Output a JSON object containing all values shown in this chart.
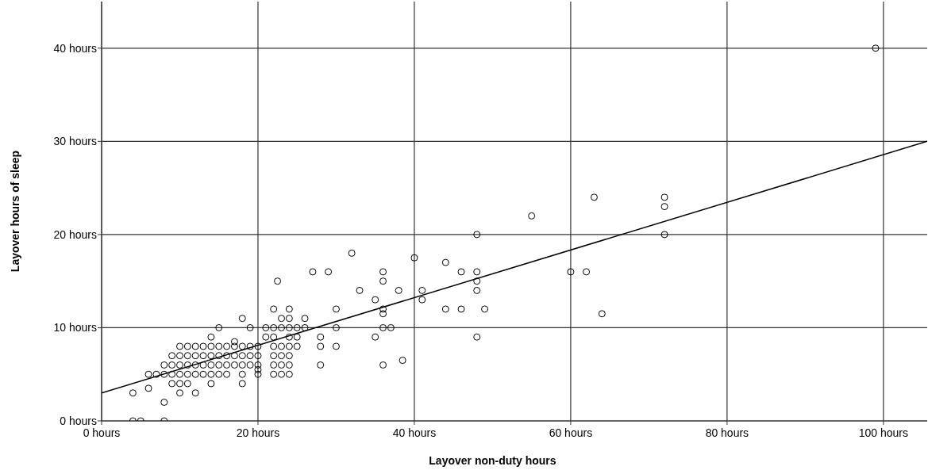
{
  "chart_data": {
    "type": "scatter",
    "xlabel": "Layover non-duty hours",
    "ylabel": "Layover hours of sleep",
    "xlim": [
      0,
      105.6
    ],
    "ylim": [
      0,
      45
    ],
    "xticks": [
      {
        "value": 0,
        "label": "0 hours"
      },
      {
        "value": 20,
        "label": "20 hours"
      },
      {
        "value": 40,
        "label": "40 hours"
      },
      {
        "value": 60,
        "label": "60 hours"
      },
      {
        "value": 80,
        "label": "80 hours"
      },
      {
        "value": 100,
        "label": "100 hours"
      }
    ],
    "yticks": [
      {
        "value": 0,
        "label": "0 hours"
      },
      {
        "value": 10,
        "label": "10 hours"
      },
      {
        "value": 20,
        "label": "20 hours"
      },
      {
        "value": 30,
        "label": "30 hours"
      },
      {
        "value": 40,
        "label": "40 hours"
      }
    ],
    "grid": true,
    "marker": "circle",
    "series": [
      {
        "color": "#000000",
        "x": [
          99,
          72,
          72,
          72,
          63,
          55,
          60,
          62,
          64,
          48,
          48,
          48,
          48,
          48,
          49,
          46,
          46,
          44,
          44,
          40,
          41,
          41,
          38,
          38.5,
          36,
          36,
          36,
          36,
          36,
          36,
          37,
          35,
          35,
          33,
          32,
          30,
          30,
          30,
          29,
          28,
          28,
          28,
          27,
          26,
          26,
          25,
          25,
          25,
          24,
          24,
          24,
          24,
          24,
          24,
          24,
          24,
          23,
          23,
          23,
          23,
          23,
          23,
          22.5,
          22,
          22,
          22,
          22,
          22,
          22,
          22,
          21,
          21,
          20,
          20,
          20,
          20,
          20,
          19,
          19,
          19,
          19,
          18,
          18,
          18,
          18,
          18,
          18,
          17,
          17,
          17,
          17,
          16,
          16,
          16,
          16,
          15,
          15,
          15,
          15,
          15,
          14,
          14,
          14,
          14,
          14,
          14,
          13,
          13,
          13,
          13,
          12,
          12,
          12,
          12,
          12,
          11,
          11,
          11,
          11,
          11,
          10,
          10,
          10,
          10,
          10,
          10,
          9,
          9,
          9,
          9,
          8,
          8,
          8,
          8,
          7,
          6,
          6,
          4,
          4,
          5
        ],
        "values": [
          40,
          24,
          23,
          20,
          24,
          22,
          16,
          16,
          11.5,
          20,
          16,
          15,
          14,
          9,
          12,
          16,
          12,
          17,
          12,
          17.5,
          14,
          13,
          14,
          6.5,
          16,
          15,
          12,
          11.5,
          10,
          6,
          10,
          13,
          9,
          14,
          18,
          12,
          10,
          8,
          16,
          9,
          8,
          6,
          16,
          11,
          10,
          10,
          9,
          8,
          12,
          11,
          10,
          9,
          8,
          7,
          6,
          5,
          11,
          10,
          8,
          7,
          6,
          5,
          15,
          12,
          10,
          9,
          8,
          7,
          6,
          5,
          10,
          9,
          8,
          7,
          6,
          5.5,
          5,
          10,
          8,
          7,
          6,
          11,
          8,
          7,
          6,
          5,
          4,
          8.5,
          8,
          7,
          6,
          8,
          7,
          6,
          5,
          10,
          8,
          7,
          6,
          5,
          9,
          8,
          7,
          6,
          5,
          4,
          8,
          7,
          6,
          5,
          8,
          7,
          6,
          5,
          3,
          8,
          7,
          6,
          5,
          4,
          8,
          7,
          6,
          5,
          4,
          3,
          7,
          6,
          5,
          4,
          6,
          5,
          2,
          0,
          5,
          5,
          3.5,
          3,
          0,
          0
        ]
      },
      {
        "type": "line",
        "color": "#000000",
        "marker": "none",
        "x": [
          0,
          105.6
        ],
        "values": [
          3,
          30
        ]
      }
    ]
  }
}
